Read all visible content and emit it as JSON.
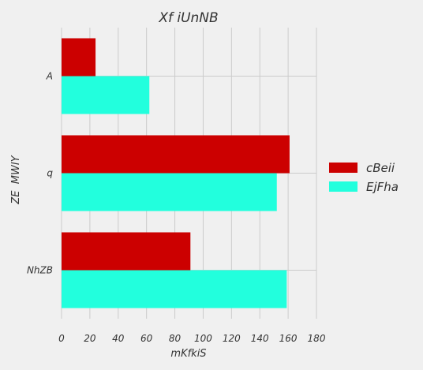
{
  "chart_data": {
    "type": "bar",
    "orientation": "horizontal",
    "title": "Xf iUnNB",
    "xlabel": "mKfkiS",
    "ylabel": "ZE  MWIY",
    "categories": [
      "A",
      "q",
      "NhZB"
    ],
    "series": [
      {
        "name": "cBeii",
        "values": [
          24,
          161,
          91
        ],
        "color": "#cc0000"
      },
      {
        "name": "EjFha",
        "values": [
          62,
          152,
          159
        ],
        "color": "#22ffdd"
      }
    ],
    "xlim": [
      0,
      180
    ],
    "xticks": [
      0,
      20,
      40,
      60,
      80,
      100,
      120,
      140,
      160,
      180
    ],
    "grid": true,
    "legend_position": "right"
  }
}
